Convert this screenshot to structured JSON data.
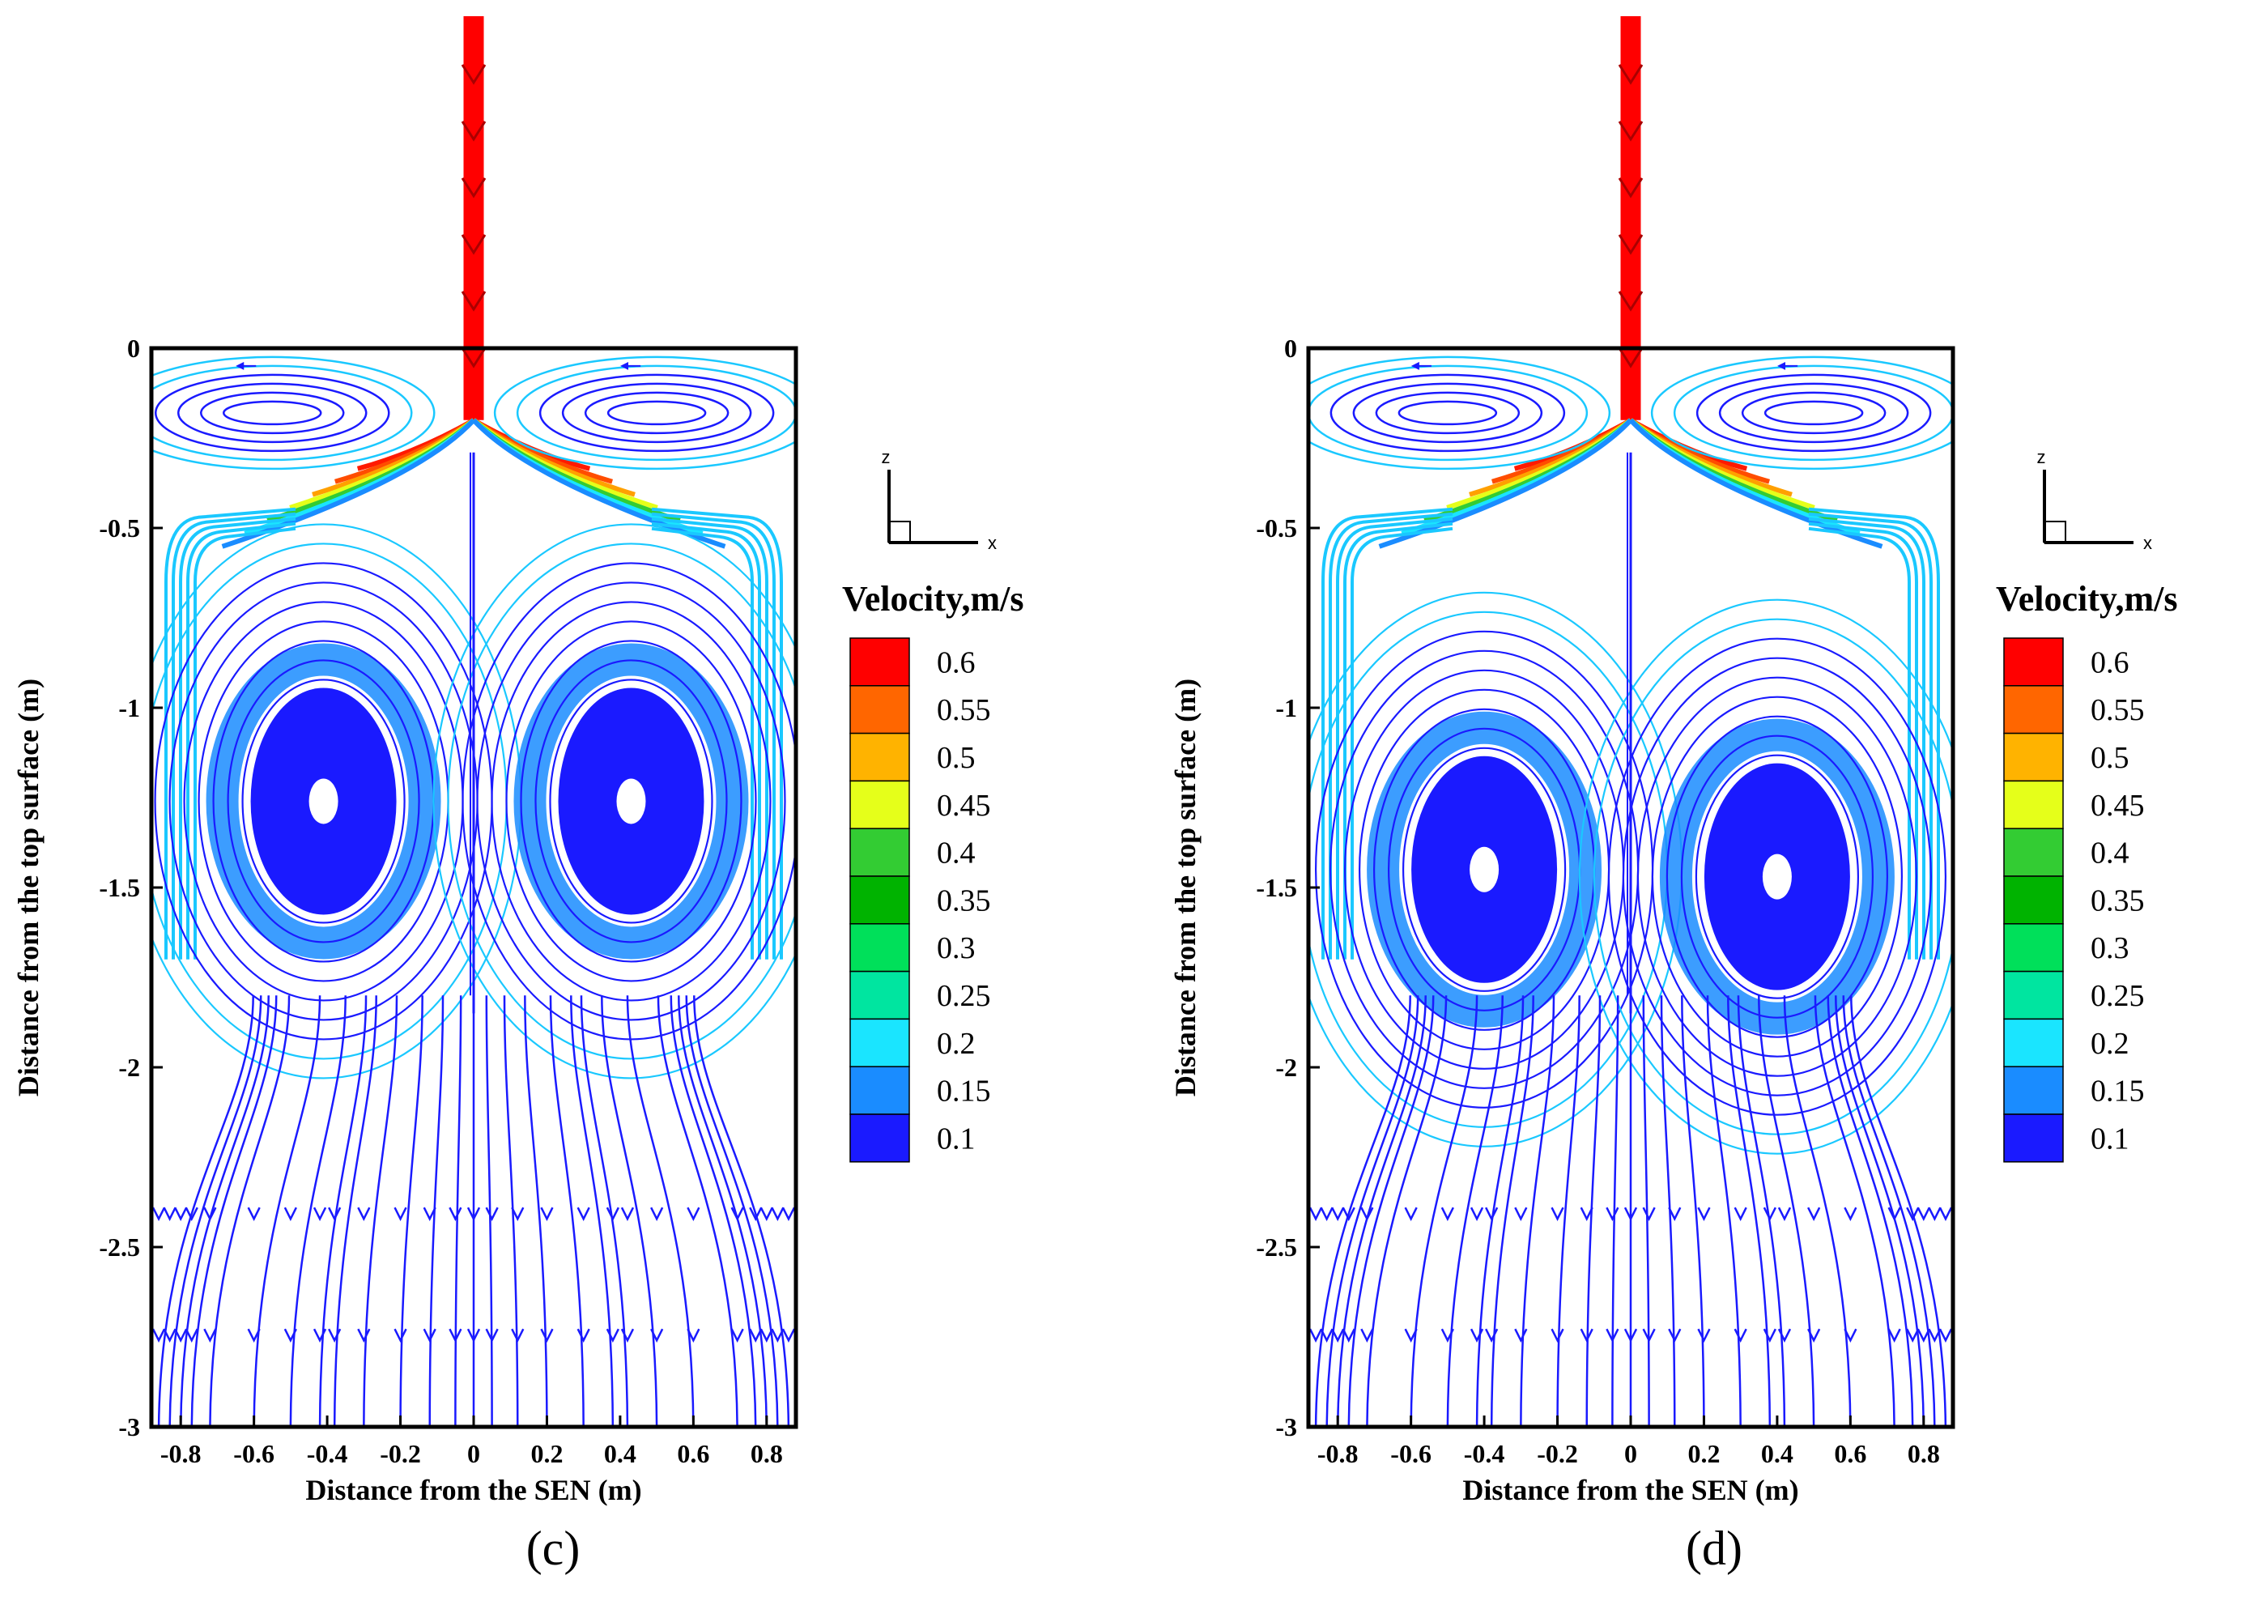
{
  "chart_data": [
    {
      "type": "streamline",
      "panel_label": "(c)",
      "xlabel": "Distance from the SEN (m)",
      "ylabel": "Distance from the top surface (m)",
      "x_ticks": [
        "-0.8",
        "-0.6",
        "-0.4",
        "-0.2",
        "0",
        "0.2",
        "0.4",
        "0.6",
        "0.8"
      ],
      "y_ticks": [
        "0",
        "-0.5",
        "-1",
        "-1.5",
        "-2",
        "-2.5",
        "-3"
      ],
      "xlim": [
        -0.88,
        0.88
      ],
      "ylim": [
        -3,
        0
      ],
      "colorbar": {
        "title": "Velocity,m/s",
        "levels": [
          "0.6",
          "0.55",
          "0.5",
          "0.45",
          "0.4",
          "0.35",
          "0.3",
          "0.25",
          "0.2",
          "0.15",
          "0.1"
        ],
        "colors": [
          "#ff0000",
          "#ff6600",
          "#ffb300",
          "#e5ff1a",
          "#33cc33",
          "#00b300",
          "#00e05a",
          "#00e5a0",
          "#1ae5ff",
          "#1a8cff",
          "#1a1aff"
        ]
      },
      "features": {
        "vortex_centers": [
          [
            -0.41,
            -1.26
          ],
          [
            0.43,
            -1.26
          ]
        ],
        "upper_roll_centers": [
          [
            -0.55,
            -0.18
          ],
          [
            0.5,
            -0.18
          ]
        ],
        "nozzle_outlet_depth": -0.2
      },
      "coordinate_triad": {
        "axis_z": "z",
        "axis_x": "x"
      }
    },
    {
      "type": "streamline",
      "panel_label": "(d)",
      "xlabel": "Distance from the SEN (m)",
      "ylabel": "Distance from the top surface (m)",
      "x_ticks": [
        "-0.8",
        "-0.6",
        "-0.4",
        "-0.2",
        "0",
        "0.2",
        "0.4",
        "0.6",
        "0.8"
      ],
      "y_ticks": [
        "0",
        "-0.5",
        "-1",
        "-1.5",
        "-2",
        "-2.5",
        "-3"
      ],
      "xlim": [
        -0.88,
        0.88
      ],
      "ylim": [
        -3,
        0
      ],
      "colorbar": {
        "title": "Velocity,m/s",
        "levels": [
          "0.6",
          "0.55",
          "0.5",
          "0.45",
          "0.4",
          "0.35",
          "0.3",
          "0.25",
          "0.2",
          "0.15",
          "0.1"
        ],
        "colors": [
          "#ff0000",
          "#ff6600",
          "#ffb300",
          "#e5ff1a",
          "#33cc33",
          "#00b300",
          "#00e05a",
          "#00e5a0",
          "#1ae5ff",
          "#1a8cff",
          "#1a1aff"
        ]
      },
      "features": {
        "vortex_centers": [
          [
            -0.4,
            -1.45
          ],
          [
            0.4,
            -1.47
          ]
        ],
        "upper_roll_centers": [
          [
            -0.5,
            -0.18
          ],
          [
            0.5,
            -0.18
          ]
        ],
        "nozzle_outlet_depth": -0.2
      },
      "coordinate_triad": {
        "axis_z": "z",
        "axis_x": "x"
      }
    }
  ]
}
